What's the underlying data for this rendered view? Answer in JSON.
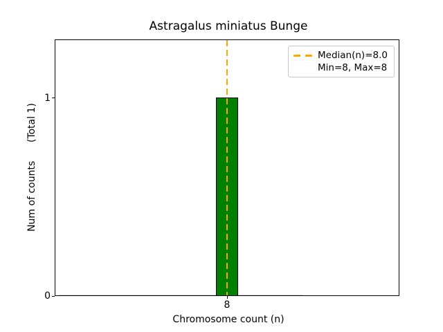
{
  "chart_data": {
    "type": "bar",
    "title": "Astragalus miniatus Bunge",
    "xlabel": "Chromosome count (n)",
    "ylabel": "Num of counts      (Total 1)",
    "categories": [
      8
    ],
    "values": [
      1
    ],
    "total_counts": 1,
    "xlim": [
      7.4,
      8.6
    ],
    "ylim": [
      0,
      1.295
    ],
    "bar_width": 0.075,
    "x_ticks": [
      {
        "value": 8,
        "label": "8"
      }
    ],
    "y_ticks": [
      {
        "value": 0,
        "label": "0"
      },
      {
        "value": 1,
        "label": "1"
      }
    ],
    "grid": false,
    "bar_color": "#008000",
    "bar_edge_color": "#000000",
    "zero_bar_color": "#d3d3d3",
    "median_line": {
      "x": 8,
      "value": 8.0,
      "color": "#FFA500",
      "linestyle": "dashed"
    },
    "legend": {
      "position": "upper-right",
      "entries": [
        {
          "label": "Median(n)=8.0",
          "marker": "dashed-line",
          "color": "#FFA500"
        },
        {
          "label": "Min=8, Max=8",
          "marker": "none",
          "color": ""
        }
      ]
    }
  }
}
